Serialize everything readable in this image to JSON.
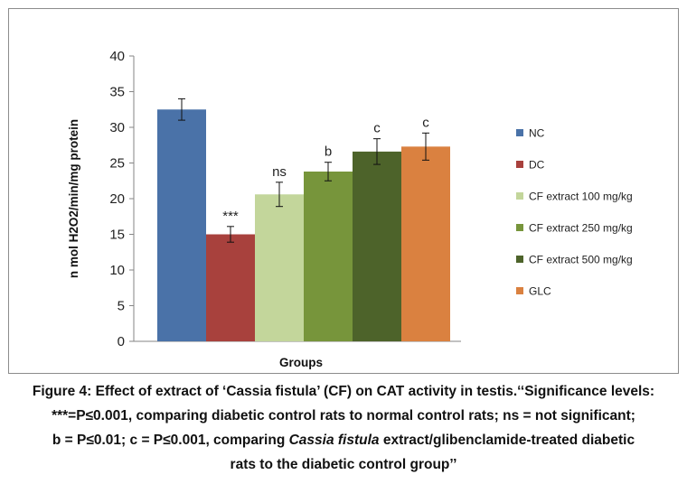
{
  "chart_data": {
    "type": "bar",
    "title": "",
    "xlabel": "Groups",
    "ylabel": "n mol H2O2/min/mg protein",
    "ylim": [
      0,
      40
    ],
    "yticks": [
      "0",
      "5",
      "10",
      "15",
      "20",
      "25",
      "30",
      "35",
      "40"
    ],
    "grid": false,
    "legend_position": "right",
    "series": [
      {
        "name": "NC",
        "value": 32.5,
        "error": 1.5,
        "annotation": "",
        "color": "#4a72a8"
      },
      {
        "name": "DC",
        "value": 15.0,
        "error": 1.1,
        "annotation": "***",
        "color": "#a8413d"
      },
      {
        "name": "CF extract 100 mg/kg",
        "value": 20.6,
        "error": 1.7,
        "annotation": "ns",
        "color": "#c3d69b"
      },
      {
        "name": "CF extract 250 mg/kg",
        "value": 23.8,
        "error": 1.3,
        "annotation": "b",
        "color": "#77953b"
      },
      {
        "name": "CF extract 500 mg/kg",
        "value": 26.6,
        "error": 1.8,
        "annotation": "c",
        "color": "#4d632a"
      },
      {
        "name": "GLC",
        "value": 27.3,
        "error": 1.9,
        "annotation": "c",
        "color": "#da8140"
      }
    ]
  },
  "caption": {
    "line1": "Figure 4: Effect of extract of ‘Cassia fistula’ (CF) on CAT activity in testis.‘‘Significance levels:",
    "line2": "***=P≤0.001, comparing diabetic control rats to normal control rats; ns = not significant;",
    "line3_a": "b = P≤0.01; c = P≤0.001, comparing ",
    "line3_italic": "Cassia fistula",
    "line3_b": " extract/glibenclamide-treated diabetic",
    "line4": "rats to the diabetic control group’’"
  }
}
